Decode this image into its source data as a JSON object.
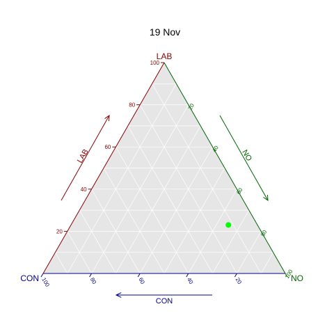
{
  "chart_data": {
    "type": "scatter",
    "title": "19 Nov",
    "axes": {
      "top": {
        "vertex_label": "LAB",
        "arrow_label": "LAB",
        "color": "#8b0000"
      },
      "right": {
        "vertex_label": "NO",
        "arrow_label": "NO",
        "color": "#006400"
      },
      "left": {
        "vertex_label": "CON",
        "arrow_label": "CON",
        "color": "#00008b"
      }
    },
    "ticks": [
      "20",
      "40",
      "60",
      "80",
      "100"
    ],
    "range": [
      0,
      100
    ],
    "grid_step": 10,
    "grid": true,
    "background_color": "#e6e6e6",
    "grid_color": "#ffffff",
    "points": [
      {
        "LAB": 23,
        "NO": 65,
        "CON": 12,
        "color": "#00ff00"
      }
    ]
  }
}
